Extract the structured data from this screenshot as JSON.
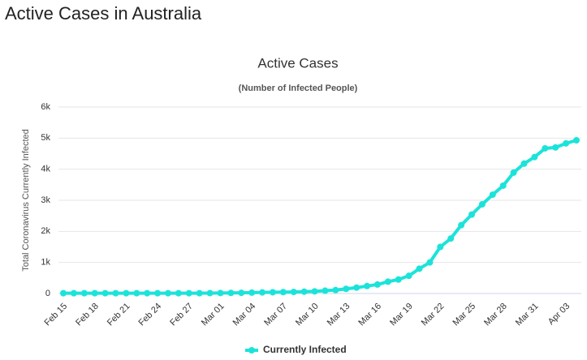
{
  "page_title": "Active Cases in Australia",
  "chart_data": {
    "type": "line",
    "title": "Active Cases",
    "subtitle": "(Number of Infected People)",
    "y_label": "Total Coronavirus Currently Infected",
    "categories": [
      "Feb 15",
      null,
      null,
      "Feb 18",
      null,
      null,
      "Feb 21",
      null,
      null,
      "Feb 24",
      null,
      null,
      "Feb 27",
      null,
      null,
      "Mar 01",
      null,
      null,
      "Mar 04",
      null,
      null,
      "Mar 07",
      null,
      null,
      "Mar 10",
      null,
      null,
      "Mar 13",
      null,
      null,
      "Mar 16",
      null,
      null,
      "Mar 19",
      null,
      null,
      "Mar 22",
      null,
      null,
      "Mar 25",
      null,
      null,
      "Mar 28",
      null,
      null,
      "Mar 31",
      null,
      null,
      "Apr 03",
      null
    ],
    "series": [
      {
        "name": "Currently Infected",
        "color": "#1ce3da",
        "values": [
          10,
          10,
          10,
          10,
          10,
          10,
          10,
          10,
          10,
          10,
          10,
          10,
          10,
          10,
          12,
          15,
          18,
          22,
          28,
          35,
          40,
          45,
          50,
          60,
          70,
          90,
          110,
          150,
          190,
          240,
          290,
          380,
          450,
          570,
          800,
          1000,
          1500,
          1770,
          2200,
          2540,
          2870,
          3180,
          3470,
          3890,
          4180,
          4390,
          4670,
          4700,
          4830,
          4930
        ]
      }
    ],
    "ylim": [
      0,
      6000
    ],
    "yticks": [
      0,
      {
        "value": 1000,
        "label": "1k"
      },
      {
        "value": 2000,
        "label": "2k"
      },
      {
        "value": 3000,
        "label": "3k"
      },
      {
        "value": 4000,
        "label": "4k"
      },
      {
        "value": 5000,
        "label": "5k"
      },
      {
        "value": 6000,
        "label": "6k"
      }
    ],
    "grid": true,
    "legend": "bottom"
  }
}
